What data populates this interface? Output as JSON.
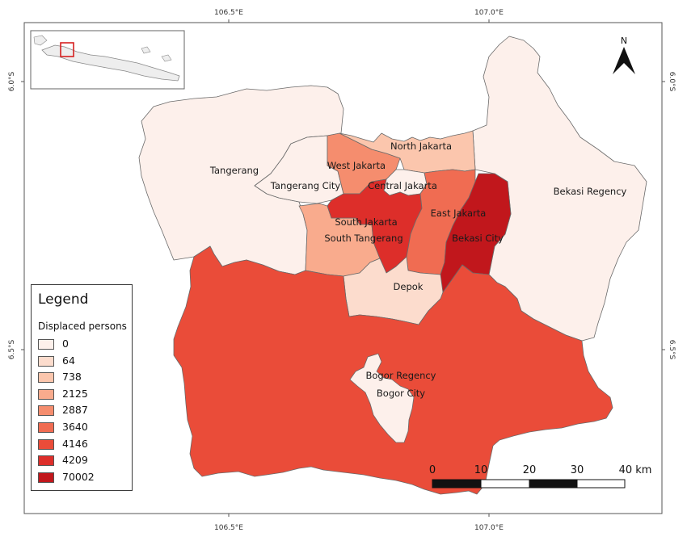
{
  "map": {
    "ticks": {
      "top": [
        "106.5°E",
        "107.0°E"
      ],
      "bottom": [
        "106.5°E",
        "107.0°E"
      ],
      "left": [
        "6.0°S",
        "6.5°S"
      ],
      "right": [
        "6.0°S",
        "6.5°S"
      ]
    },
    "north_arrow": {
      "label": "N",
      "icon": "north-arrow-icon"
    },
    "scale_bar": {
      "labels": [
        "0",
        "10",
        "20",
        "30",
        "40 km"
      ]
    },
    "inset": {
      "description_icon": "java-island-inset-icon",
      "highlight_color": "#d62020"
    }
  },
  "legend": {
    "title": "Legend",
    "subtitle": "Displaced persons",
    "items": [
      {
        "label": "0",
        "color": "#fdf0eb"
      },
      {
        "label": "64",
        "color": "#fcdccd"
      },
      {
        "label": "738",
        "color": "#fbc6ad"
      },
      {
        "label": "2125",
        "color": "#f9ab8d"
      },
      {
        "label": "2887",
        "color": "#f58d6e"
      },
      {
        "label": "3640",
        "color": "#f06c52"
      },
      {
        "label": "4146",
        "color": "#ea4c39"
      },
      {
        "label": "4209",
        "color": "#dd2e2a"
      },
      {
        "label": "70002",
        "color": "#c1171c"
      }
    ]
  },
  "chart_data": {
    "type": "choropleth",
    "variable": "Displaced persons",
    "regions": [
      {
        "name": "Tangerang",
        "value": 0
      },
      {
        "name": "Tangerang City",
        "value": 0
      },
      {
        "name": "North Jakarta",
        "value": 738
      },
      {
        "name": "West Jakarta",
        "value": 2887
      },
      {
        "name": "Central Jakarta",
        "value": 0
      },
      {
        "name": "South Jakarta",
        "value": 4209
      },
      {
        "name": "South Tangerang",
        "value": 2125
      },
      {
        "name": "East Jakarta",
        "value": 3640
      },
      {
        "name": "Bekasi City",
        "value": 70002
      },
      {
        "name": "Bekasi Regency",
        "value": 0
      },
      {
        "name": "Depok",
        "value": 64
      },
      {
        "name": "Bogor Regency",
        "value": 4146
      },
      {
        "name": "Bogor City",
        "value": 0
      }
    ]
  }
}
